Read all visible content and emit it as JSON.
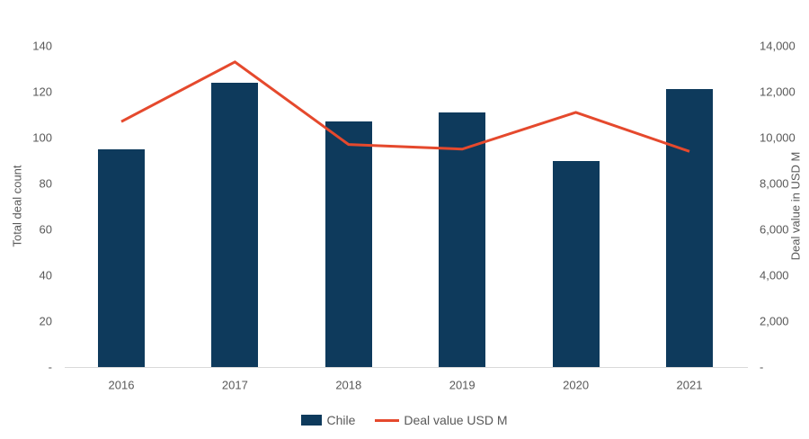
{
  "chart_data": {
    "type": "bar",
    "subtype": "combo-bar-line",
    "title": "",
    "categories": [
      "2016",
      "2017",
      "2018",
      "2019",
      "2020",
      "2021"
    ],
    "series": [
      {
        "name": "Chile",
        "mark": "bar",
        "axis": "left",
        "values": [
          95,
          124,
          107,
          111,
          90,
          121
        ],
        "color": "#0e3a5c"
      },
      {
        "name": "Deal value USD M",
        "mark": "line",
        "axis": "right",
        "values": [
          10700,
          13300,
          9700,
          9500,
          11100,
          9400
        ],
        "color": "#e5492d"
      }
    ],
    "left_axis": {
      "label": "Total deal count",
      "min": 0,
      "max": 140,
      "tick_step": 20,
      "tick_labels": [
        "140",
        "120",
        "100",
        "80",
        "60",
        "40",
        "20",
        "-"
      ],
      "zero_label": "-"
    },
    "right_axis": {
      "label": "Deal value in USD M",
      "min": 0,
      "max": 14000,
      "tick_step": 2000,
      "tick_labels": [
        "14,000",
        "12,000",
        "10,000",
        "8,000",
        "6,000",
        "4,000",
        "2,000",
        "-"
      ],
      "zero_label": "-"
    },
    "grid": false,
    "legend_position": "bottom",
    "legend": [
      {
        "label": "Chile",
        "swatch": "bar",
        "color": "#0e3a5c"
      },
      {
        "label": "Deal value USD M",
        "swatch": "line",
        "color": "#e5492d"
      }
    ],
    "colors": {
      "bar": "#0e3a5c",
      "line": "#e5492d",
      "axis_text": "#595959",
      "baseline": "#d9d9d9",
      "background": "#ffffff"
    }
  }
}
